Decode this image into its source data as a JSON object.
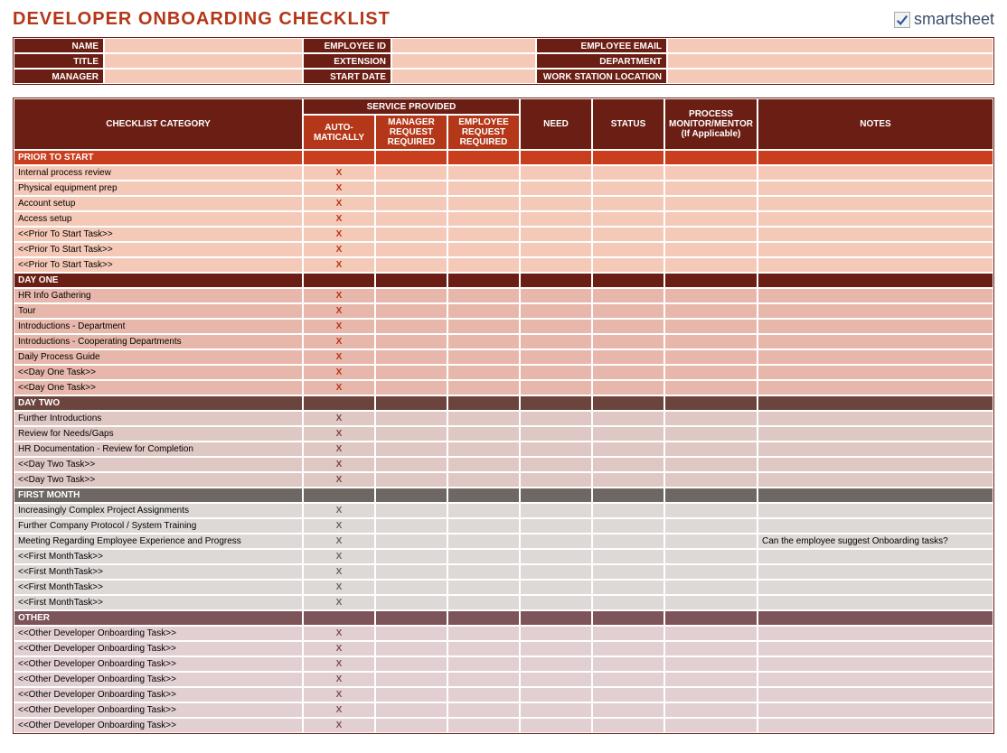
{
  "title": "DEVELOPER ONBOARDING CHECKLIST",
  "title_color": "#b33718",
  "logo_text": "smartsheet",
  "logo_text_color": "#3a4d6b",
  "info_fields": {
    "row1": [
      {
        "label": "NAME",
        "value": ""
      },
      {
        "label": "EMPLOYEE ID",
        "value": ""
      },
      {
        "label": "EMPLOYEE EMAIL",
        "value": ""
      }
    ],
    "row2": [
      {
        "label": "TITLE",
        "value": ""
      },
      {
        "label": "EXTENSION",
        "value": ""
      },
      {
        "label": "DEPARTMENT",
        "value": ""
      }
    ],
    "row3": [
      {
        "label": "MANAGER",
        "value": ""
      },
      {
        "label": "START DATE",
        "value": ""
      },
      {
        "label": "WORK STATION LOCATION",
        "value": ""
      }
    ]
  },
  "columns": {
    "category": "CHECKLIST CATEGORY",
    "service_group": "SERVICE PROVIDED",
    "auto": "AUTO-MATICALLY",
    "mgr": "MANAGER REQUEST REQUIRED",
    "emp": "EMPLOYEE REQUEST REQUIRED",
    "need": "NEED",
    "status": "STATUS",
    "process": "PROCESS MONITOR/MENTOR (If Applicable)",
    "notes": "NOTES"
  },
  "sections": [
    {
      "name": "PRIOR TO START",
      "section_bg": "#c93e1c",
      "row_bg": "#f5c9b8",
      "x_color": "#b33718",
      "rows": [
        {
          "task": "Internal process review",
          "auto": "X",
          "mgr": "",
          "emp": "",
          "need": "",
          "status": "",
          "process": "",
          "notes": ""
        },
        {
          "task": "Physical equipment prep",
          "auto": "X",
          "mgr": "",
          "emp": "",
          "need": "",
          "status": "",
          "process": "",
          "notes": ""
        },
        {
          "task": "Account setup",
          "auto": "X",
          "mgr": "",
          "emp": "",
          "need": "",
          "status": "",
          "process": "",
          "notes": ""
        },
        {
          "task": "Access setup",
          "auto": "X",
          "mgr": "",
          "emp": "",
          "need": "",
          "status": "",
          "process": "",
          "notes": ""
        },
        {
          "task": "<<Prior To Start Task>>",
          "auto": "X",
          "mgr": "",
          "emp": "",
          "need": "",
          "status": "",
          "process": "",
          "notes": ""
        },
        {
          "task": "<<Prior To Start Task>>",
          "auto": "X",
          "mgr": "",
          "emp": "",
          "need": "",
          "status": "",
          "process": "",
          "notes": ""
        },
        {
          "task": "<<Prior To Start Task>>",
          "auto": "X",
          "mgr": "",
          "emp": "",
          "need": "",
          "status": "",
          "process": "",
          "notes": ""
        }
      ]
    },
    {
      "name": "DAY ONE",
      "section_bg": "#6b1e14",
      "row_bg": "#e8b7ab",
      "x_color": "#b33718",
      "rows": [
        {
          "task": "HR Info Gathering",
          "auto": "X",
          "mgr": "",
          "emp": "",
          "need": "",
          "status": "",
          "process": "",
          "notes": ""
        },
        {
          "task": "Tour",
          "auto": "X",
          "mgr": "",
          "emp": "",
          "need": "",
          "status": "",
          "process": "",
          "notes": ""
        },
        {
          "task": "Introductions - Department",
          "auto": "X",
          "mgr": "",
          "emp": "",
          "need": "",
          "status": "",
          "process": "",
          "notes": ""
        },
        {
          "task": "Introductions - Cooperating Departments",
          "auto": "X",
          "mgr": "",
          "emp": "",
          "need": "",
          "status": "",
          "process": "",
          "notes": ""
        },
        {
          "task": "Daily Process Guide",
          "auto": "X",
          "mgr": "",
          "emp": "",
          "need": "",
          "status": "",
          "process": "",
          "notes": ""
        },
        {
          "task": "<<Day One Task>>",
          "auto": "X",
          "mgr": "",
          "emp": "",
          "need": "",
          "status": "",
          "process": "",
          "notes": ""
        },
        {
          "task": "<<Day One Task>>",
          "auto": "X",
          "mgr": "",
          "emp": "",
          "need": "",
          "status": "",
          "process": "",
          "notes": ""
        }
      ]
    },
    {
      "name": "DAY TWO",
      "section_bg": "#6b443d",
      "row_bg": "#dfc8c3",
      "x_color": "#7a4b44",
      "rows": [
        {
          "task": "Further Introductions",
          "auto": "X",
          "mgr": "",
          "emp": "",
          "need": "",
          "status": "",
          "process": "",
          "notes": ""
        },
        {
          "task": "Review for Needs/Gaps",
          "auto": "X",
          "mgr": "",
          "emp": "",
          "need": "",
          "status": "",
          "process": "",
          "notes": ""
        },
        {
          "task": "HR Documentation - Review for Completion",
          "auto": "X",
          "mgr": "",
          "emp": "",
          "need": "",
          "status": "",
          "process": "",
          "notes": ""
        },
        {
          "task": "<<Day Two Task>>",
          "auto": "X",
          "mgr": "",
          "emp": "",
          "need": "",
          "status": "",
          "process": "",
          "notes": ""
        },
        {
          "task": "<<Day Two Task>>",
          "auto": "X",
          "mgr": "",
          "emp": "",
          "need": "",
          "status": "",
          "process": "",
          "notes": ""
        }
      ]
    },
    {
      "name": "FIRST MONTH",
      "section_bg": "#6e6763",
      "row_bg": "#ded9d6",
      "x_color": "#6e6763",
      "rows": [
        {
          "task": "Increasingly Complex Project Assignments",
          "auto": "X",
          "mgr": "",
          "emp": "",
          "need": "",
          "status": "",
          "process": "",
          "notes": ""
        },
        {
          "task": "Further Company Protocol / System Training",
          "auto": "X",
          "mgr": "",
          "emp": "",
          "need": "",
          "status": "",
          "process": "",
          "notes": ""
        },
        {
          "task": "Meeting Regarding Employee Experience and Progress",
          "auto": "X",
          "mgr": "",
          "emp": "",
          "need": "",
          "status": "",
          "process": "",
          "notes": "Can the employee suggest Onboarding tasks?"
        },
        {
          "task": "<<First MonthTask>>",
          "auto": "X",
          "mgr": "",
          "emp": "",
          "need": "",
          "status": "",
          "process": "",
          "notes": ""
        },
        {
          "task": "<<First MonthTask>>",
          "auto": "X",
          "mgr": "",
          "emp": "",
          "need": "",
          "status": "",
          "process": "",
          "notes": ""
        },
        {
          "task": "<<First MonthTask>>",
          "auto": "X",
          "mgr": "",
          "emp": "",
          "need": "",
          "status": "",
          "process": "",
          "notes": ""
        },
        {
          "task": "<<First MonthTask>>",
          "auto": "X",
          "mgr": "",
          "emp": "",
          "need": "",
          "status": "",
          "process": "",
          "notes": ""
        }
      ]
    },
    {
      "name": "OTHER",
      "section_bg": "#7c545a",
      "row_bg": "#e2cfd1",
      "x_color": "#7c545a",
      "rows": [
        {
          "task": "<<Other Developer Onboarding Task>>",
          "auto": "X",
          "mgr": "",
          "emp": "",
          "need": "",
          "status": "",
          "process": "",
          "notes": ""
        },
        {
          "task": "<<Other Developer Onboarding Task>>",
          "auto": "X",
          "mgr": "",
          "emp": "",
          "need": "",
          "status": "",
          "process": "",
          "notes": ""
        },
        {
          "task": "<<Other Developer Onboarding Task>>",
          "auto": "X",
          "mgr": "",
          "emp": "",
          "need": "",
          "status": "",
          "process": "",
          "notes": ""
        },
        {
          "task": "<<Other Developer Onboarding Task>>",
          "auto": "X",
          "mgr": "",
          "emp": "",
          "need": "",
          "status": "",
          "process": "",
          "notes": ""
        },
        {
          "task": "<<Other Developer Onboarding Task>>",
          "auto": "X",
          "mgr": "",
          "emp": "",
          "need": "",
          "status": "",
          "process": "",
          "notes": ""
        },
        {
          "task": "<<Other Developer Onboarding Task>>",
          "auto": "X",
          "mgr": "",
          "emp": "",
          "need": "",
          "status": "",
          "process": "",
          "notes": ""
        },
        {
          "task": "<<Other Developer Onboarding Task>>",
          "auto": "X",
          "mgr": "",
          "emp": "",
          "need": "",
          "status": "",
          "process": "",
          "notes": ""
        }
      ]
    }
  ]
}
